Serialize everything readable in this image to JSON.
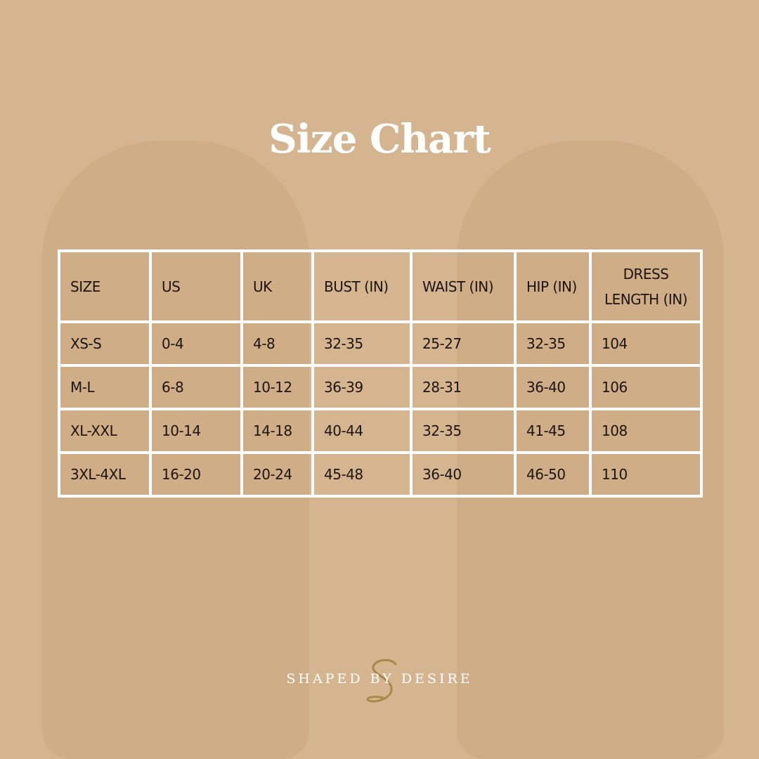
{
  "title": "Size Chart",
  "table": {
    "headers": [
      "SIZE",
      "US",
      "UK",
      "BUST (IN)",
      "WAIST (IN)",
      "HIP (IN)",
      "DRESS LENGTH (IN)"
    ],
    "rows": [
      [
        "XS-S",
        "0-4",
        "4-8",
        "32-35",
        "25-27",
        "32-35",
        "104"
      ],
      [
        "M-L",
        "6-8",
        "10-12",
        "36-39",
        "28-31",
        "36-40",
        "106"
      ],
      [
        "XL-XXL",
        "10-14",
        "14-18",
        "40-44",
        "32-35",
        "41-45",
        "108"
      ],
      [
        "3XL-4XL",
        "16-20",
        "20-24",
        "45-48",
        "36-40",
        "46-50",
        "110"
      ]
    ]
  },
  "brand": {
    "name": "SHAPED BY DESIRE",
    "monogram": "S",
    "accent": "#a8894a"
  },
  "colors": {
    "background": "#d5b590",
    "text": "#1c140d",
    "lines": "#ffffff"
  }
}
